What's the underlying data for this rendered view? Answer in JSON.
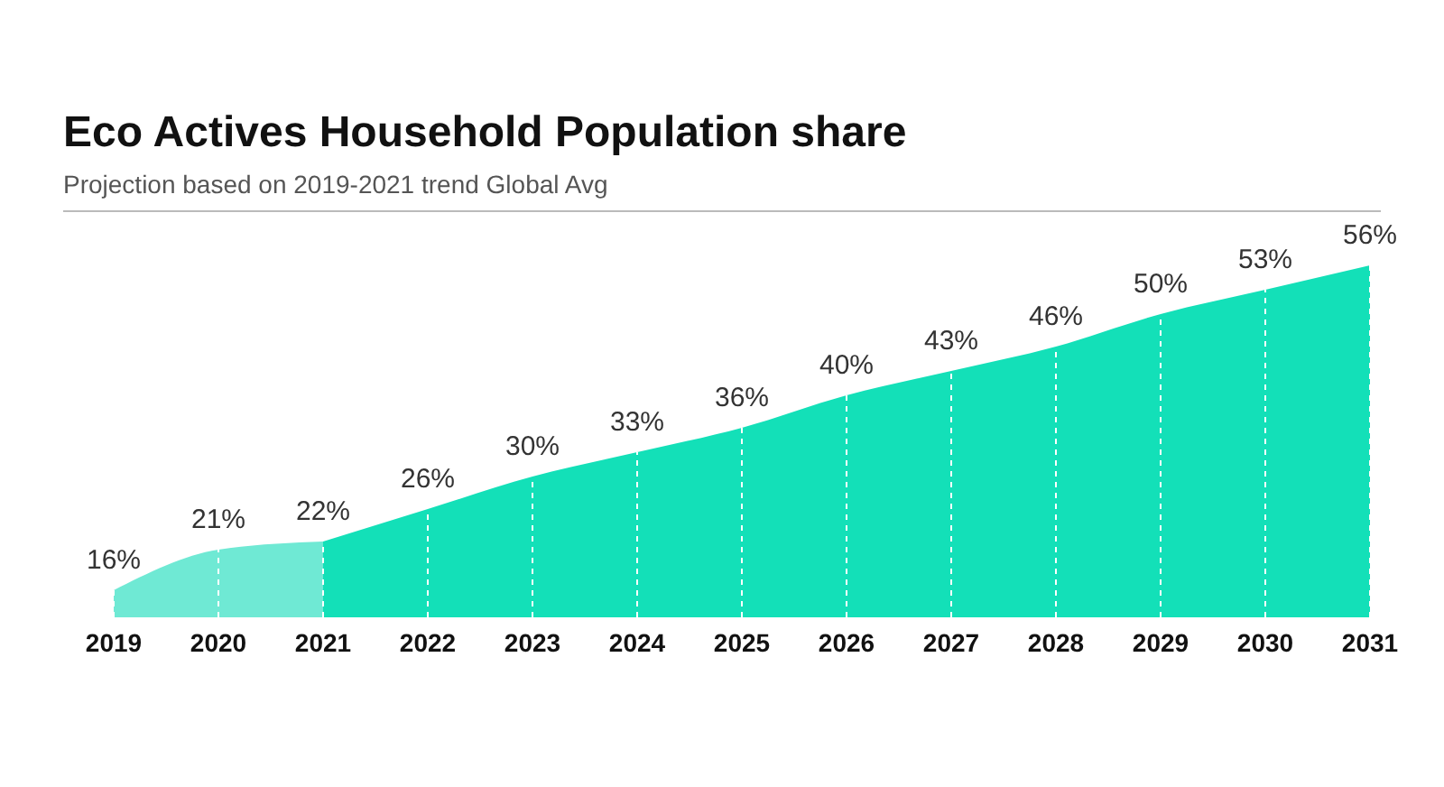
{
  "chart_data": {
    "type": "area",
    "title": "Eco Actives Household Population share",
    "subtitle": "Projection based on 2019-2021 trend Global Avg",
    "categories": [
      "2019",
      "2020",
      "2021",
      "2022",
      "2023",
      "2024",
      "2025",
      "2026",
      "2027",
      "2028",
      "2029",
      "2030",
      "2031"
    ],
    "series": [
      {
        "color": "#6fe9d4",
        "values": [
          16,
          21,
          22,
          null,
          null,
          null,
          null,
          null,
          null,
          null,
          null,
          null,
          null
        ],
        "value_labels": [
          "16%",
          "21%",
          "22%",
          null,
          null,
          null,
          null,
          null,
          null,
          null,
          null,
          null,
          null
        ]
      },
      {
        "color": "#13e0b8",
        "values": [
          null,
          null,
          22,
          26,
          30,
          33,
          36,
          40,
          43,
          46,
          50,
          53,
          56
        ],
        "value_labels": [
          null,
          null,
          null,
          "26%",
          "30%",
          "33%",
          "36%",
          "40%",
          "43%",
          "46%",
          "50%",
          "53%",
          "56%"
        ]
      }
    ],
    "grid": "x"
  }
}
